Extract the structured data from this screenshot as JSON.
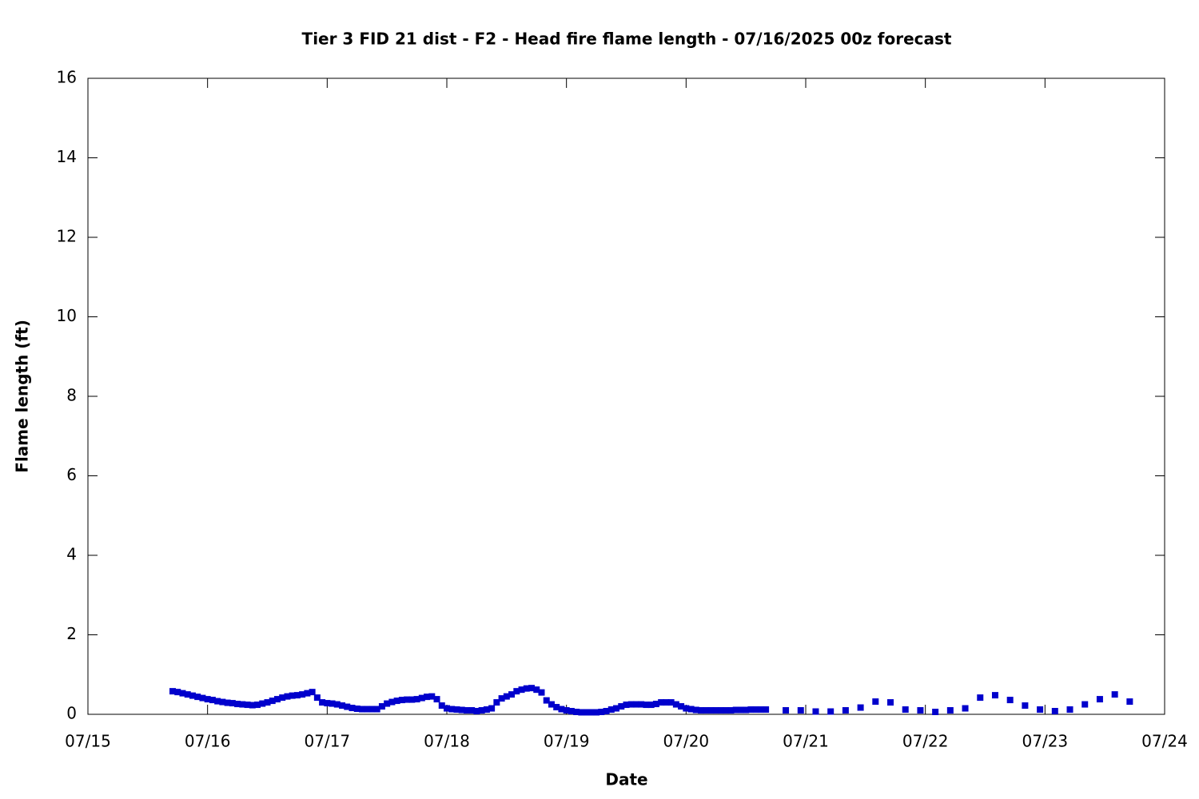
{
  "chart_data": {
    "type": "scatter",
    "title": "Tier 3 FID 21 dist - F2 - Head fire flame length - 07/16/2025 00z forecast",
    "xlabel": "Date",
    "ylabel": "Flame length (ft)",
    "color": "#0000cc",
    "x": [
      17,
      18,
      19,
      20,
      21,
      22,
      23,
      24,
      25,
      26,
      27,
      28,
      29,
      30,
      31,
      32,
      33,
      34,
      35,
      36,
      37,
      38,
      39,
      40,
      41,
      42,
      43,
      44,
      45,
      46,
      47,
      48,
      49,
      50,
      51,
      52,
      53,
      54,
      55,
      56,
      57,
      58,
      59,
      60,
      61,
      62,
      63,
      64,
      65,
      66,
      67,
      68,
      69,
      70,
      71,
      72,
      73,
      74,
      75,
      76,
      77,
      78,
      79,
      80,
      81,
      82,
      83,
      84,
      85,
      86,
      87,
      88,
      89,
      90,
      91,
      92,
      93,
      94,
      95,
      96,
      97,
      98,
      99,
      100,
      101,
      102,
      103,
      104,
      105,
      106,
      107,
      108,
      109,
      110,
      111,
      112,
      113,
      114,
      115,
      116,
      117,
      118,
      119,
      120,
      121,
      122,
      123,
      124,
      125,
      126,
      127,
      128,
      129,
      130,
      131,
      132,
      133,
      134,
      135,
      136,
      140,
      143,
      146,
      149,
      152,
      155,
      158,
      161,
      164,
      167,
      170,
      173,
      176,
      179,
      182,
      185,
      188,
      191,
      194,
      197,
      200,
      203,
      206,
      209
    ],
    "values": [
      0.58,
      0.56,
      0.53,
      0.5,
      0.47,
      0.44,
      0.41,
      0.38,
      0.36,
      0.33,
      0.31,
      0.29,
      0.28,
      0.26,
      0.25,
      0.24,
      0.23,
      0.24,
      0.27,
      0.3,
      0.34,
      0.38,
      0.42,
      0.45,
      0.47,
      0.48,
      0.5,
      0.53,
      0.56,
      0.42,
      0.3,
      0.28,
      0.27,
      0.25,
      0.22,
      0.19,
      0.16,
      0.14,
      0.13,
      0.13,
      0.13,
      0.13,
      0.2,
      0.27,
      0.31,
      0.34,
      0.36,
      0.37,
      0.37,
      0.38,
      0.41,
      0.44,
      0.45,
      0.38,
      0.22,
      0.15,
      0.13,
      0.12,
      0.11,
      0.1,
      0.1,
      0.08,
      0.1,
      0.12,
      0.15,
      0.3,
      0.4,
      0.45,
      0.5,
      0.58,
      0.62,
      0.65,
      0.66,
      0.62,
      0.55,
      0.35,
      0.25,
      0.18,
      0.13,
      0.1,
      0.08,
      0.06,
      0.05,
      0.05,
      0.05,
      0.05,
      0.06,
      0.08,
      0.12,
      0.15,
      0.2,
      0.24,
      0.25,
      0.25,
      0.25,
      0.24,
      0.24,
      0.26,
      0.3,
      0.3,
      0.3,
      0.25,
      0.2,
      0.15,
      0.13,
      0.11,
      0.1,
      0.1,
      0.1,
      0.1,
      0.1,
      0.1,
      0.1,
      0.11,
      0.11,
      0.11,
      0.12,
      0.12,
      0.12,
      0.12,
      0.1,
      0.1,
      0.07,
      0.07,
      0.1,
      0.17,
      0.32,
      0.3,
      0.12,
      0.1,
      0.06,
      0.1,
      0.15,
      0.42,
      0.48,
      0.36,
      0.22,
      0.12,
      0.08,
      0.12,
      0.25,
      0.38,
      0.5,
      0.32
    ],
    "xlim": [
      0,
      216
    ],
    "xticks": [
      {
        "value": 0,
        "label": "07/15"
      },
      {
        "value": 24,
        "label": "07/16"
      },
      {
        "value": 48,
        "label": "07/17"
      },
      {
        "value": 72,
        "label": "07/18"
      },
      {
        "value": 96,
        "label": "07/19"
      },
      {
        "value": 120,
        "label": "07/20"
      },
      {
        "value": 144,
        "label": "07/21"
      },
      {
        "value": 168,
        "label": "07/22"
      },
      {
        "value": 192,
        "label": "07/23"
      },
      {
        "value": 216,
        "label": "07/24"
      }
    ],
    "ylim": [
      0,
      16
    ],
    "yticks": [
      0,
      2,
      4,
      6,
      8,
      10,
      12,
      14,
      16
    ]
  }
}
